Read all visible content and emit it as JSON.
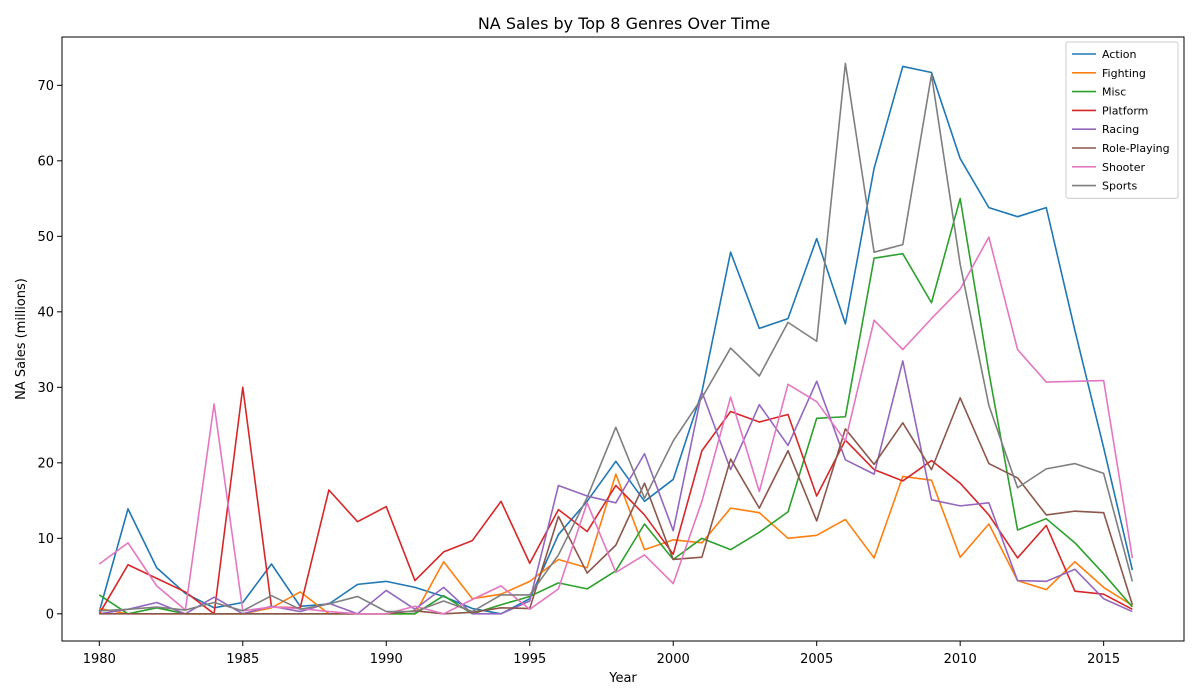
{
  "chart_data": {
    "type": "line",
    "title": "NA Sales by Top 8 Genres Over Time",
    "xlabel": "Year",
    "ylabel": "NA Sales (millions)",
    "xlim": [
      1978.7,
      2017.8
    ],
    "ylim": [
      -3.6,
      76.4
    ],
    "x_ticks": [
      1980,
      1985,
      1990,
      1995,
      2000,
      2005,
      2010,
      2015
    ],
    "y_ticks": [
      0,
      10,
      20,
      30,
      40,
      50,
      60,
      70
    ],
    "grid": false,
    "legend_position": "top-right",
    "x": [
      1980,
      1981,
      1982,
      1983,
      1984,
      1985,
      1986,
      1987,
      1988,
      1989,
      1990,
      1991,
      1992,
      1993,
      1994,
      1995,
      1996,
      1997,
      1998,
      1999,
      2000,
      2001,
      2002,
      2003,
      2004,
      2005,
      2006,
      2007,
      2008,
      2009,
      2010,
      2011,
      2012,
      2013,
      2014,
      2015,
      2016
    ],
    "series": [
      {
        "name": "Action",
        "color": "#1f77b4",
        "values": [
          0.3,
          13.9,
          6.1,
          2.7,
          0.8,
          1.5,
          6.6,
          1.0,
          1.3,
          3.9,
          4.3,
          3.5,
          2.3,
          0.7,
          0.0,
          2.0,
          10.5,
          14.9,
          20.2,
          14.9,
          17.8,
          29.4,
          47.9,
          37.8,
          39.1,
          49.7,
          38.4,
          59.0,
          72.5,
          71.7,
          60.3,
          53.8,
          52.6,
          53.8,
          37.5,
          22.0,
          5.8
        ]
      },
      {
        "name": "Fighting",
        "color": "#ff7f0e",
        "values": [
          0.7,
          0.0,
          0.0,
          0.0,
          0.0,
          0.0,
          0.8,
          2.9,
          0.0,
          0.0,
          0.0,
          0.0,
          6.9,
          2.0,
          2.6,
          4.3,
          7.2,
          6.1,
          18.5,
          8.5,
          9.8,
          9.4,
          14.0,
          13.4,
          10.0,
          10.4,
          12.5,
          7.4,
          18.2,
          17.7,
          7.5,
          11.9,
          4.4,
          3.2,
          6.9,
          3.5,
          1.1
        ]
      },
      {
        "name": "Misc",
        "color": "#2ca02c",
        "values": [
          2.5,
          0.0,
          0.8,
          0.0,
          0.0,
          0.0,
          0.0,
          0.0,
          0.0,
          0.0,
          0.0,
          0.0,
          2.4,
          0.0,
          1.2,
          2.3,
          4.1,
          3.3,
          5.7,
          11.9,
          7.2,
          10.0,
          8.5,
          10.8,
          13.5,
          25.9,
          26.1,
          47.1,
          47.7,
          41.2,
          55.0,
          32.0,
          11.1,
          12.6,
          9.4,
          5.3,
          0.9
        ]
      },
      {
        "name": "Platform",
        "color": "#d62728",
        "values": [
          0.0,
          6.5,
          4.7,
          2.9,
          0.0,
          30.0,
          0.9,
          0.8,
          16.4,
          12.2,
          14.2,
          4.4,
          8.2,
          9.7,
          14.9,
          6.7,
          13.8,
          10.9,
          17.0,
          13.1,
          7.9,
          21.6,
          26.8,
          25.4,
          26.4,
          15.6,
          23.0,
          19.1,
          17.6,
          20.3,
          17.3,
          13.1,
          7.4,
          11.7,
          3.0,
          2.6,
          0.6
        ]
      },
      {
        "name": "Racing",
        "color": "#9467bd",
        "values": [
          0.0,
          0.6,
          1.5,
          0.0,
          2.2,
          0.0,
          1.0,
          0.3,
          1.4,
          0.0,
          3.1,
          0.6,
          3.5,
          0.0,
          0.0,
          1.7,
          17.0,
          15.6,
          14.7,
          21.2,
          11.0,
          29.4,
          19.1,
          27.7,
          22.3,
          30.8,
          20.4,
          18.5,
          33.5,
          15.1,
          14.3,
          14.7,
          4.4,
          4.3,
          5.9,
          2.0,
          0.3
        ]
      },
      {
        "name": "Role-Playing",
        "color": "#8c564b",
        "values": [
          0.0,
          0.0,
          0.0,
          0.0,
          0.0,
          0.0,
          0.0,
          0.0,
          0.0,
          0.0,
          0.0,
          0.4,
          0.0,
          0.2,
          0.8,
          0.7,
          12.9,
          5.4,
          9.1,
          17.3,
          7.2,
          7.5,
          20.5,
          14.0,
          21.6,
          12.3,
          24.5,
          19.8,
          25.3,
          19.1,
          28.6,
          19.9,
          18.0,
          13.1,
          13.6,
          13.4,
          1.2
        ]
      },
      {
        "name": "Shooter",
        "color": "#e377c2",
        "values": [
          6.6,
          9.4,
          3.7,
          0.5,
          27.8,
          0.4,
          0.9,
          0.7,
          0.3,
          0.0,
          0.0,
          1.0,
          0.0,
          1.9,
          3.7,
          0.6,
          3.3,
          14.7,
          5.5,
          7.8,
          4.0,
          14.9,
          28.7,
          16.2,
          30.4,
          28.1,
          22.9,
          38.9,
          35.0,
          39.1,
          43.0,
          49.9,
          35.0,
          30.7,
          30.8,
          30.9,
          7.4
        ]
      },
      {
        "name": "Sports",
        "color": "#7f7f7f",
        "values": [
          0.4,
          0.6,
          0.9,
          0.5,
          1.5,
          0.4,
          2.4,
          0.6,
          1.3,
          2.3,
          0.3,
          0.3,
          1.7,
          0.3,
          2.5,
          2.5,
          7.8,
          15.4,
          24.7,
          15.3,
          22.9,
          28.6,
          35.2,
          31.5,
          38.6,
          36.1,
          72.9,
          47.9,
          48.9,
          71.4,
          46.3,
          27.6,
          16.7,
          19.2,
          19.9,
          18.6,
          4.3
        ]
      }
    ]
  }
}
